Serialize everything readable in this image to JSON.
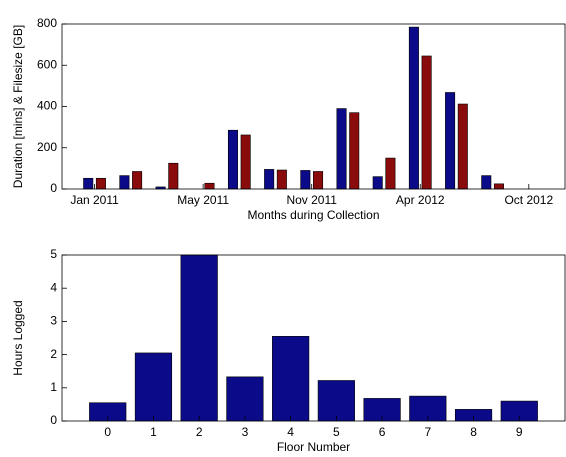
{
  "chart_data": [
    {
      "type": "bar",
      "xlabel": "Months during Collection",
      "ylabel": "Duration [mins] & Filesize [GB]",
      "categories": [
        "Jan 2011",
        null,
        null,
        "May 2011",
        null,
        null,
        "Nov 2011",
        null,
        null,
        "Apr 2012",
        null,
        null,
        "Oct 2012"
      ],
      "series": [
        {
          "color": "#0b0b8a",
          "values": [
            52,
            65,
            10,
            0,
            285,
            95,
            90,
            390,
            60,
            785,
            468,
            65,
            null
          ]
        },
        {
          "color": "#8a0b0b",
          "values": [
            52,
            85,
            125,
            28,
            262,
            92,
            85,
            370,
            150,
            645,
            412,
            25,
            null
          ]
        }
      ],
      "ylim": [
        0,
        800
      ],
      "yticks": [
        0,
        200,
        400,
        600,
        800
      ]
    },
    {
      "type": "bar",
      "xlabel": "Floor Number",
      "ylabel": "Hours Logged",
      "categories": [
        "0",
        "1",
        "2",
        "3",
        "4",
        "5",
        "6",
        "7",
        "8",
        "9"
      ],
      "values": [
        0.55,
        2.05,
        5,
        1.33,
        2.55,
        1.22,
        0.68,
        0.75,
        0.35,
        0.6
      ],
      "color": "#0b0b8a",
      "ylim": [
        0,
        5
      ],
      "yticks": [
        0,
        1,
        2,
        3,
        4,
        5
      ]
    }
  ]
}
